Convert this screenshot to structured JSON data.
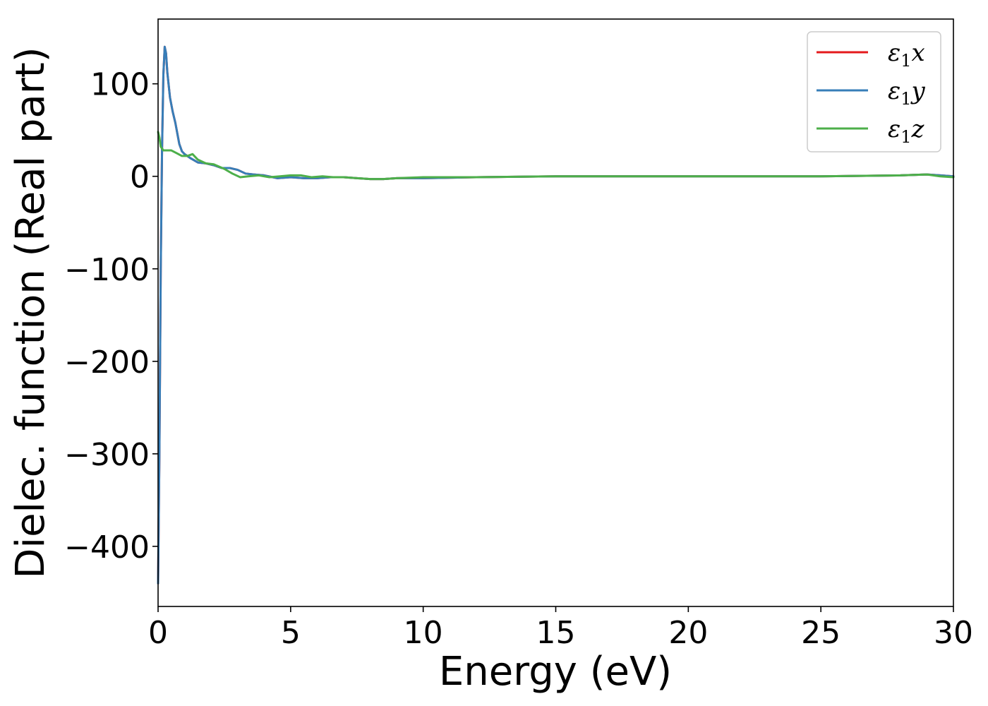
{
  "chart_data": {
    "type": "line",
    "xlabel": "Energy (eV)",
    "ylabel": "Dielec. function (Real part)",
    "xlim": [
      0,
      30
    ],
    "ylim": [
      -465,
      170
    ],
    "xticks": [
      0,
      5,
      10,
      15,
      20,
      25,
      30
    ],
    "xtick_labels": [
      "0",
      "5",
      "10",
      "15",
      "20",
      "25",
      "30"
    ],
    "yticks": [
      100,
      0,
      -100,
      -200,
      -300,
      -400
    ],
    "ytick_labels": [
      "100",
      "0",
      "−100",
      "−200",
      "−300",
      "−400"
    ],
    "grid": false,
    "legend_position": "top-right",
    "series": [
      {
        "name": "ε1x",
        "symbol": "ε",
        "subscript": "1",
        "suffix": "x",
        "color": "#e41a1c",
        "x": [
          0,
          0.05,
          0.1,
          0.15,
          0.2,
          0.25,
          0.3,
          0.35,
          0.45,
          0.55,
          0.65,
          0.8,
          0.9,
          1.0,
          1.2,
          1.5,
          1.8,
          2.1,
          2.4,
          2.7,
          3.0,
          3.3,
          3.6,
          4.0,
          4.5,
          5.0,
          5.5,
          6.0,
          6.5,
          7.0,
          7.5,
          8.0,
          8.5,
          9.0,
          9.5,
          10,
          12,
          15,
          20,
          25,
          28,
          29,
          29.5,
          30
        ],
        "y": [
          -440,
          -300,
          -100,
          30,
          110,
          140,
          133,
          112,
          85,
          70,
          58,
          35,
          27,
          24,
          20,
          15,
          14,
          12,
          9,
          9,
          7,
          3,
          2,
          1,
          -2,
          -1,
          -2,
          -2,
          -1,
          -1,
          -2,
          -3,
          -3,
          -2,
          -2,
          -2,
          -1,
          0,
          0,
          0,
          1,
          2,
          1,
          0
        ]
      },
      {
        "name": "ε1y",
        "symbol": "ε",
        "subscript": "1",
        "suffix": "y",
        "color": "#377eb8",
        "x": [
          0,
          0.05,
          0.1,
          0.15,
          0.2,
          0.25,
          0.3,
          0.35,
          0.45,
          0.55,
          0.65,
          0.8,
          0.9,
          1.0,
          1.2,
          1.5,
          1.8,
          2.1,
          2.4,
          2.7,
          3.0,
          3.3,
          3.6,
          4.0,
          4.5,
          5.0,
          5.5,
          6.0,
          6.5,
          7.0,
          7.5,
          8.0,
          8.5,
          9.0,
          9.5,
          10,
          12,
          15,
          20,
          25,
          28,
          29,
          29.5,
          30
        ],
        "y": [
          -440,
          -300,
          -100,
          30,
          110,
          140,
          133,
          112,
          85,
          70,
          58,
          35,
          27,
          24,
          20,
          15,
          14,
          12,
          9,
          9,
          7,
          3,
          2,
          1,
          -2,
          -1,
          -2,
          -2,
          -1,
          -1,
          -2,
          -3,
          -3,
          -2,
          -2,
          -2,
          -1,
          0,
          0,
          0,
          1,
          2,
          1,
          0
        ]
      },
      {
        "name": "ε1z",
        "symbol": "ε",
        "subscript": "1",
        "suffix": "z",
        "color": "#4daf4a",
        "x": [
          0,
          0.05,
          0.1,
          0.2,
          0.3,
          0.5,
          0.7,
          0.9,
          1.1,
          1.3,
          1.5,
          1.8,
          2.1,
          2.5,
          2.8,
          3.1,
          3.4,
          3.8,
          4.2,
          4.6,
          5.0,
          5.4,
          5.8,
          6.2,
          6.6,
          7.0,
          7.5,
          8.0,
          8.5,
          9.0,
          10,
          12,
          15,
          20,
          25,
          28,
          29,
          29.5,
          30
        ],
        "y": [
          48,
          42,
          32,
          28,
          28,
          28,
          25,
          22,
          22,
          24,
          18,
          14,
          13,
          8,
          3,
          -1,
          0,
          1,
          -1,
          0,
          1,
          1,
          -1,
          0,
          -1,
          -1,
          -2,
          -3,
          -3,
          -2,
          -1,
          -1,
          0,
          0,
          0,
          1,
          2,
          0,
          -1
        ]
      }
    ]
  }
}
